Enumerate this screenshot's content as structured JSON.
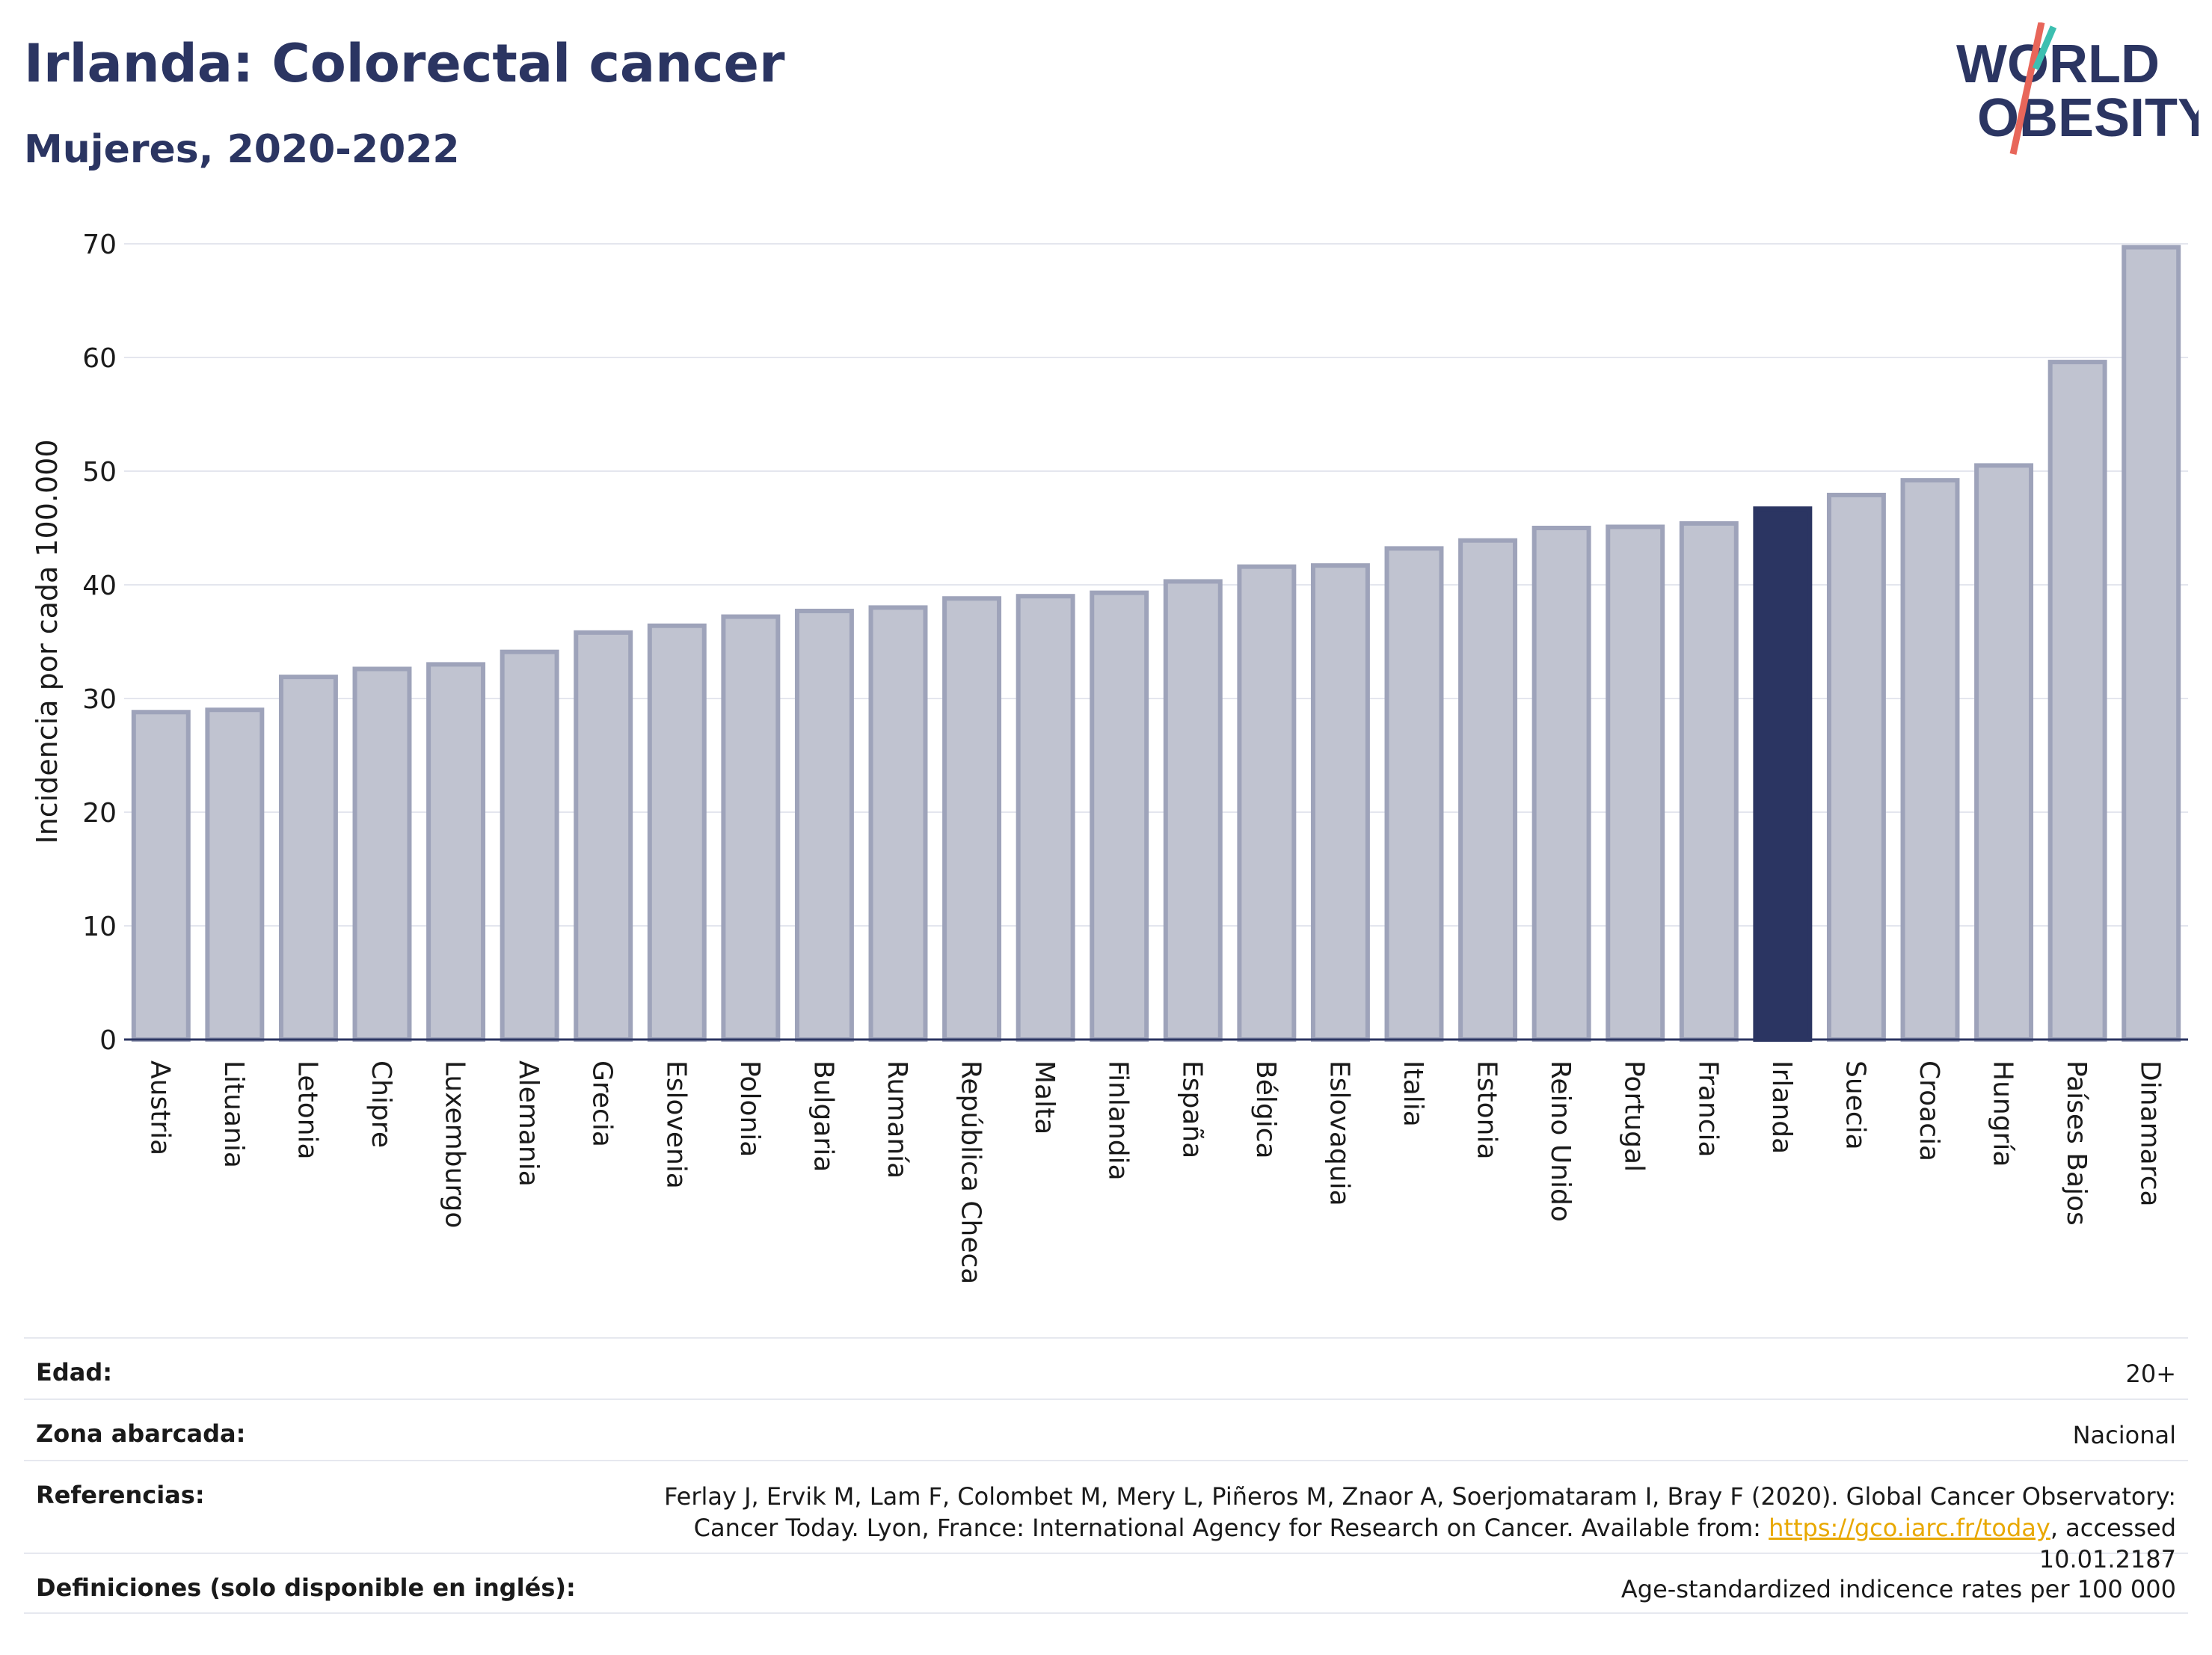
{
  "header": {
    "title": "Irlanda: Colorectal cancer",
    "subtitle": "Mujeres, 2020-2022"
  },
  "logo": {
    "line1": "WORLD",
    "line2": "OBESITY",
    "colors": {
      "text": "#2b3562",
      "slash_red": "#e8665a",
      "slash_teal": "#3dbfb0"
    }
  },
  "chart_data": {
    "type": "bar",
    "ylabel": "Incidencia por cada 100.000",
    "ylim": [
      0,
      70
    ],
    "yticks": [
      0,
      10,
      20,
      30,
      40,
      50,
      60,
      70
    ],
    "grid": true,
    "highlight": "Irlanda",
    "colors": {
      "bar": "#c0c3d0",
      "bar_edge": "#9ea3ba",
      "highlight": "#2b3562"
    },
    "categories": [
      "Austria",
      "Lituania",
      "Letonia",
      "Chipre",
      "Luxemburgo",
      "Alemania",
      "Grecia",
      "Eslovenia",
      "Polonia",
      "Bulgaria",
      "Rumanía",
      "República Checa",
      "Malta",
      "Finlandia",
      "España",
      "Bélgica",
      "Eslovaquia",
      "Italia",
      "Estonia",
      "Reino Unido",
      "Portugal",
      "Francia",
      "Irlanda",
      "Suecia",
      "Croacia",
      "Hungría",
      "Países Bajos",
      "Dinamarca"
    ],
    "values": [
      28.8,
      29.0,
      31.9,
      32.6,
      33.0,
      34.1,
      35.8,
      36.4,
      37.2,
      37.7,
      38.0,
      38.8,
      39.0,
      39.3,
      40.3,
      41.6,
      41.7,
      43.2,
      43.9,
      45.0,
      45.1,
      45.4,
      46.7,
      47.9,
      49.2,
      50.5,
      59.6,
      69.7
    ]
  },
  "info": {
    "rows": [
      {
        "label": "Edad:",
        "value": "20+"
      },
      {
        "label": "Zona abarcada:",
        "value": "Nacional"
      },
      {
        "label": "Referencias:",
        "value_before": "Ferlay J, Ervik M, Lam F, Colombet M, Mery L, Piñeros M, Znaor A, Soerjomataram I, Bray F (2020). Global Cancer Observatory: Cancer Today. Lyon, France: International Agency for Research on Cancer. Available from: ",
        "link": "https://gco.iarc.fr/today",
        "value_after": ", accessed 10.01.2187"
      },
      {
        "label": "Definiciones (solo disponible en inglés):",
        "value": "Age-standardized indicence rates per 100 000"
      }
    ]
  }
}
